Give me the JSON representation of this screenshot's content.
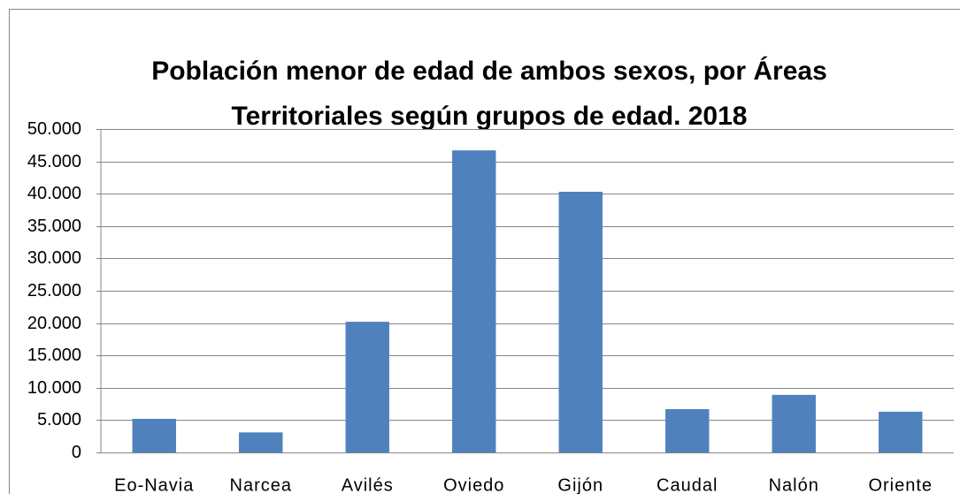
{
  "chart_data": {
    "type": "bar",
    "title": [
      "Población menor de edad de ambos sexos, por Áreas",
      "Territoriales según grupos de edad. 2018"
    ],
    "categories": [
      "Eo-Navia",
      "Narcea",
      "Avilés",
      "Oviedo",
      "Gijón",
      "Caudal",
      "Nalón",
      "Oriente"
    ],
    "values": [
      5200,
      3100,
      20200,
      46700,
      40300,
      6700,
      8900,
      6300
    ],
    "color": "#4f81bd",
    "ylim": [
      0,
      50000
    ],
    "yticks": [
      0,
      {
        "value": 5000,
        "label": "5.000"
      },
      {
        "value": 10000,
        "label": "10.000"
      },
      {
        "value": 15000,
        "label": "15.000"
      },
      {
        "value": 20000,
        "label": "20.000"
      },
      {
        "value": 25000,
        "label": "25.000"
      },
      {
        "value": 30000,
        "label": "30.000"
      },
      {
        "value": 35000,
        "label": "35.000"
      },
      {
        "value": 40000,
        "label": "40.000"
      },
      {
        "value": 45000,
        "label": "45.000"
      },
      {
        "value": 50000,
        "label": "50.000"
      }
    ],
    "grid": true
  }
}
